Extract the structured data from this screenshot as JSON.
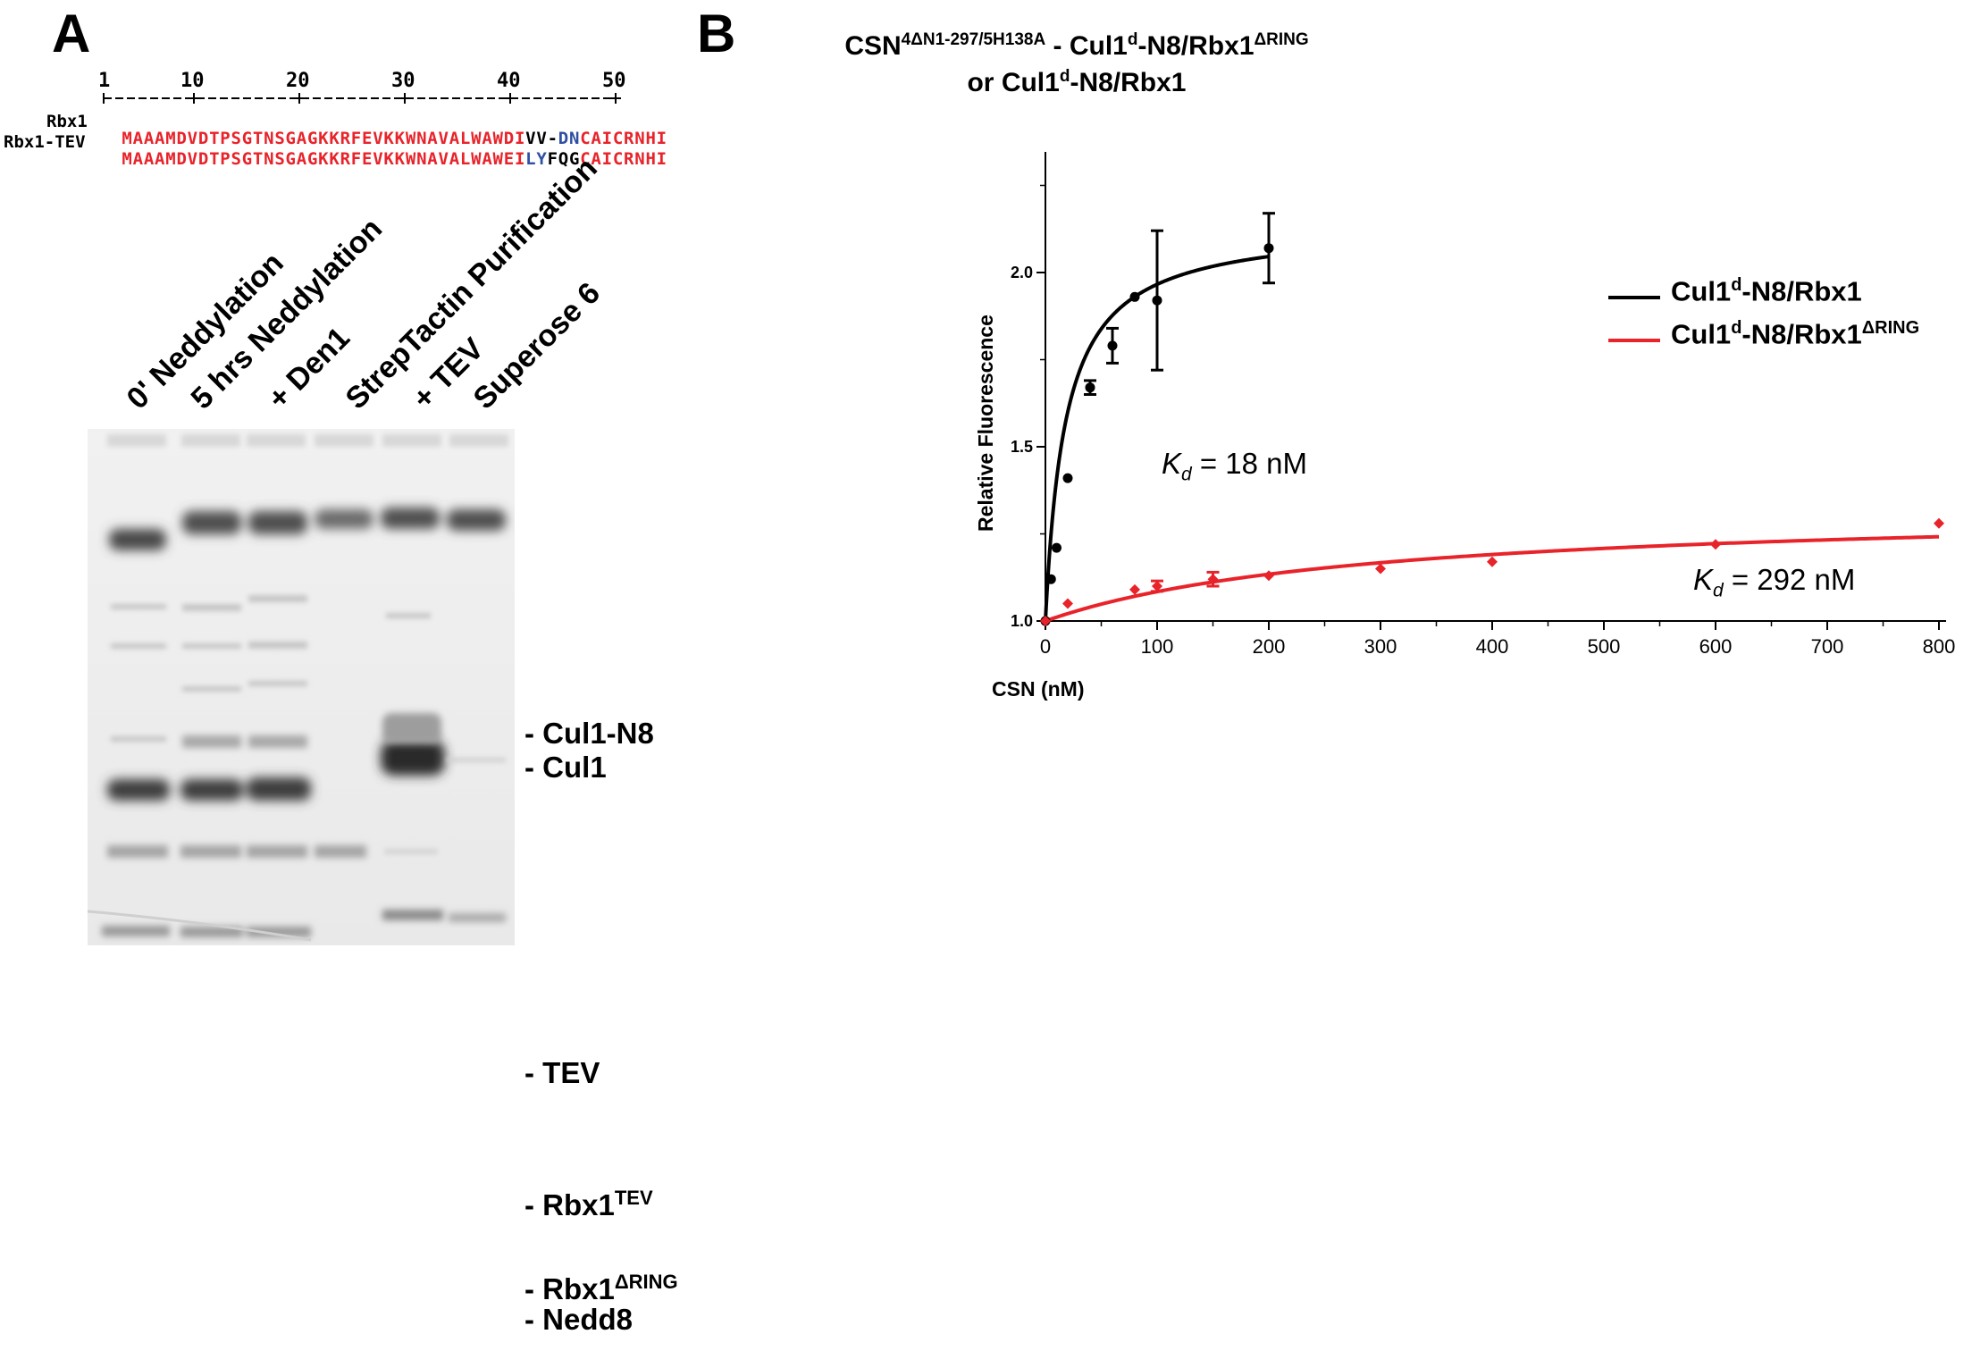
{
  "panel_a": {
    "letter": "A",
    "alignment": {
      "ruler_numbers": [
        "1",
        "10",
        "20",
        "30",
        "40",
        "50"
      ],
      "rows": [
        {
          "name": "Rbx1",
          "segments": [
            {
              "text": "MAAAMDVDTPSGTNSGAGKKRFEVKKWNAVALWAWDI",
              "color": "#e8232a"
            },
            {
              "text": "VV-",
              "color": "#000000"
            },
            {
              "text": "DN",
              "color": "#2e4fa3"
            },
            {
              "text": "CAICRNHI",
              "color": "#e8232a"
            }
          ]
        },
        {
          "name": "Rbx1-TEV",
          "segments": [
            {
              "text": "MAAAMDVDTPSGTNSGAGKKRFEVKKWNAVALWAWEI",
              "color": "#e8232a"
            },
            {
              "text": "LY",
              "color": "#2e4fa3"
            },
            {
              "text": "FQG",
              "color": "#000000"
            },
            {
              "text": "CAICRNHI",
              "color": "#e8232a"
            }
          ]
        }
      ]
    },
    "lanes": [
      "0' Neddylation",
      "5 hrs Neddylation",
      "+ Den1",
      "StrepTactin Purification",
      "+ TEV",
      "Superose 6"
    ],
    "bands": [
      {
        "main": "- Cul1-N8",
        "sup": ""
      },
      {
        "main": "- Cul1",
        "sup": ""
      },
      {
        "main": "- TEV",
        "sup": ""
      },
      {
        "main": "- Rbx1",
        "sup": "TEV"
      },
      {
        "main": "- Rbx1",
        "sup": "ΔRING"
      },
      {
        "main": "- Nedd8",
        "sup": ""
      }
    ]
  },
  "panel_b": {
    "letter": "B",
    "title_line1": {
      "pre": "CSN",
      "sup": "4ΔN1-297/5H138A",
      "mid": " - Cul1",
      "sup2": "d",
      "post": "-N8/Rbx1",
      "sup3": "ΔRING"
    },
    "title_line2": {
      "pre": "or Cul1",
      "sup": "d",
      "post": "-N8/Rbx1"
    },
    "kd_labels": [
      {
        "k": "K",
        "sub": "d",
        "text": " = 18 nM"
      },
      {
        "k": "K",
        "sub": "d",
        "text": " = 292 nM"
      }
    ],
    "legend": [
      {
        "pre": "Cul1",
        "sup": "d",
        "post": "-N8/Rbx1",
        "sup2": "",
        "color": "#000000"
      },
      {
        "pre": "Cul1",
        "sup": "d",
        "post": "-N8/Rbx1",
        "sup2": "ΔRING",
        "color": "#e8232a"
      }
    ]
  },
  "chart_data": {
    "type": "scatter",
    "xlabel": "CSN (nM)",
    "ylabel": "Relative Fluorescence",
    "xlim": [
      0,
      800
    ],
    "ylim": [
      1.0,
      2.5
    ],
    "x_ticks": [
      "0",
      "100",
      "200",
      "300",
      "400",
      "500",
      "600",
      "700",
      "800"
    ],
    "y_ticks": [
      "1.0",
      "1.5",
      "2.0"
    ],
    "grid": false,
    "legend_position": "right",
    "series": [
      {
        "name": "Cul1d-N8/Rbx1",
        "color": "#000000",
        "marker": "circle",
        "points": [
          {
            "x": 0,
            "y": 1.0,
            "err": 0
          },
          {
            "x": 5,
            "y": 1.12,
            "err": 0
          },
          {
            "x": 10,
            "y": 1.21,
            "err": 0
          },
          {
            "x": 20,
            "y": 1.41,
            "err": 0
          },
          {
            "x": 40,
            "y": 1.67,
            "err": 0.02
          },
          {
            "x": 60,
            "y": 1.79,
            "err": 0.05
          },
          {
            "x": 80,
            "y": 1.93,
            "err": 0
          },
          {
            "x": 100,
            "y": 1.92,
            "err": 0.2
          },
          {
            "x": 200,
            "y": 2.07,
            "err": 0.1
          }
        ],
        "fit": {
          "model": "one-site binding",
          "Kd": 18,
          "Bmax": 1.14,
          "x_max": 200
        }
      },
      {
        "name": "Cul1d-N8/Rbx1ΔRING",
        "color": "#e8232a",
        "marker": "diamond",
        "points": [
          {
            "x": 0,
            "y": 1.0,
            "err": 0
          },
          {
            "x": 20,
            "y": 1.05,
            "err": 0
          },
          {
            "x": 80,
            "y": 1.09,
            "err": 0
          },
          {
            "x": 100,
            "y": 1.1,
            "err": 0.015
          },
          {
            "x": 150,
            "y": 1.12,
            "err": 0.02
          },
          {
            "x": 200,
            "y": 1.13,
            "err": 0
          },
          {
            "x": 300,
            "y": 1.15,
            "err": 0
          },
          {
            "x": 400,
            "y": 1.17,
            "err": 0
          },
          {
            "x": 600,
            "y": 1.22,
            "err": 0
          },
          {
            "x": 800,
            "y": 1.28,
            "err": 0
          }
        ],
        "fit": {
          "model": "one-site binding",
          "Kd": 292,
          "Bmax": 0.33,
          "x_max": 800
        }
      }
    ]
  }
}
